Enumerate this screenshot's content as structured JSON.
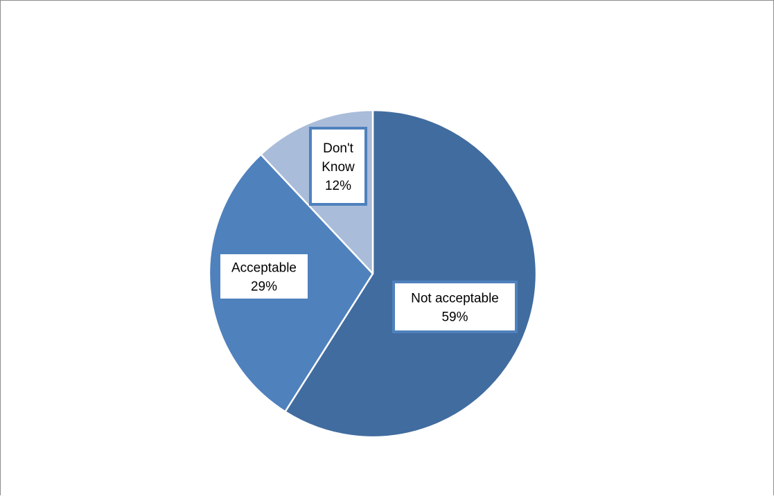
{
  "chart_data": {
    "type": "pie",
    "title": "",
    "start_angle_deg": 0,
    "direction": "clockwise",
    "slices": [
      {
        "name": "Not acceptable",
        "value": 59,
        "label": "59%",
        "color": "#416c9f"
      },
      {
        "name": "Acceptable",
        "value": 29,
        "label": "29%",
        "color": "#4f81bd"
      },
      {
        "name": "Don't Know",
        "value": 12,
        "label": "12%",
        "color": "#a9bcd9"
      }
    ],
    "label_border_color": "#4f81bd",
    "slice_separator_color": "#ffffff",
    "legend": "none"
  }
}
